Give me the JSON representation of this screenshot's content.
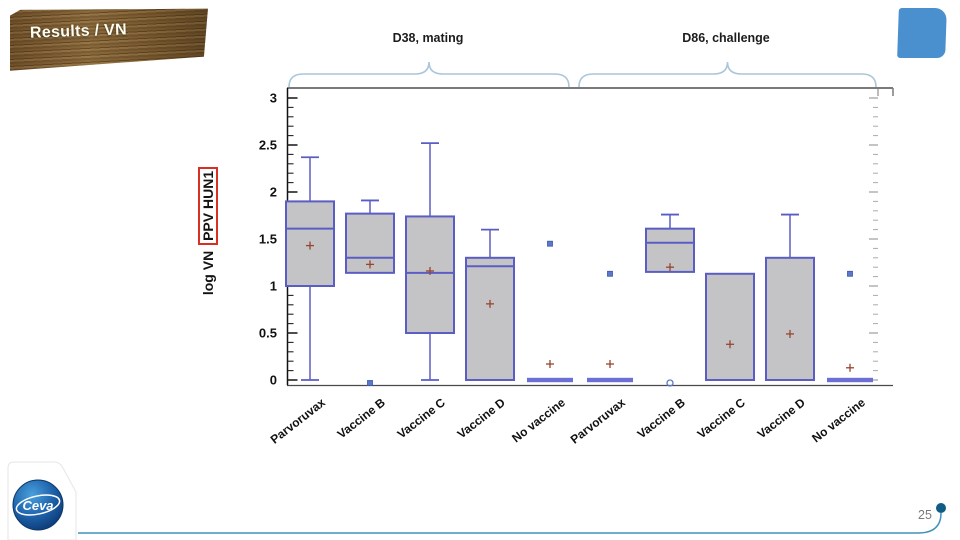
{
  "slide": {
    "title": "Results / VN",
    "page_number": "25"
  },
  "logo": {
    "brand": "Ceva"
  },
  "chart_data": {
    "type": "boxplot",
    "groups": [
      {
        "label": "D38, mating"
      },
      {
        "label": "D86, challenge"
      }
    ],
    "ylabel_prefix": "log VN",
    "ylabel_highlight": "PPV HUN1",
    "ylim": [
      0,
      3
    ],
    "ytick_step": 0.5,
    "yminor_step": 0.1,
    "ytick_labels": [
      "0",
      "0.5",
      "1",
      "1.5",
      "2",
      "2.5",
      "3"
    ],
    "categories": [
      "Parvoruvax",
      "Vaccine B",
      "Vaccine C",
      "Vaccine D",
      "No vaccine",
      "Parvoruvax",
      "Vaccine B",
      "Vaccine C",
      "Vaccine D",
      "No vaccine"
    ],
    "boxes": [
      {
        "category": "Parvoruvax",
        "group": "D38, mating",
        "lo": 0,
        "q1": 1.0,
        "med": 1.61,
        "q3": 1.9,
        "hi": 2.37,
        "mean": 1.43,
        "outliers": []
      },
      {
        "category": "Vaccine B",
        "group": "D38, mating",
        "lo": null,
        "q1": 1.14,
        "med": 1.3,
        "q3": 1.77,
        "hi": 1.91,
        "mean": 1.23,
        "outliers": [
          0
        ],
        "outlier_shape": "square"
      },
      {
        "category": "Vaccine C",
        "group": "D38, mating",
        "lo": 0,
        "q1": 0.5,
        "med": 1.14,
        "q3": 1.74,
        "hi": 2.52,
        "mean": 1.16,
        "outliers": []
      },
      {
        "category": "Vaccine D",
        "group": "D38, mating",
        "lo": null,
        "q1": 0,
        "med": 1.21,
        "q3": 1.3,
        "hi": 1.6,
        "mean": 0.81,
        "outliers": []
      },
      {
        "category": "No vaccine",
        "group": "D38, mating",
        "lo": null,
        "q1": 0,
        "med": 0,
        "q3": 0,
        "hi": null,
        "mean": 0.17,
        "outliers": [
          1.45
        ],
        "outlier_shape": "square"
      },
      {
        "category": "Parvoruvax",
        "group": "D86, challenge",
        "lo": null,
        "q1": 0,
        "med": 0,
        "q3": 0,
        "hi": null,
        "mean": 0.17,
        "outliers": [
          1.13
        ],
        "outlier_shape": "square"
      },
      {
        "category": "Vaccine B",
        "group": "D86, challenge",
        "lo": null,
        "q1": 1.15,
        "med": 1.46,
        "q3": 1.61,
        "hi": 1.76,
        "mean": 1.2,
        "outliers": [
          0
        ],
        "outlier_shape": "circle"
      },
      {
        "category": "Vaccine C",
        "group": "D86, challenge",
        "lo": null,
        "q1": 0,
        "med": 0,
        "q3": 1.13,
        "hi": null,
        "mean": 0.38,
        "outliers": []
      },
      {
        "category": "Vaccine D",
        "group": "D86, challenge",
        "lo": null,
        "q1": 0,
        "med": 0,
        "q3": 1.3,
        "hi": 1.76,
        "mean": 0.49,
        "outliers": []
      },
      {
        "category": "No vaccine",
        "group": "D86, challenge",
        "lo": null,
        "q1": 0,
        "med": 0,
        "q3": 0,
        "hi": null,
        "mean": 0.13,
        "outliers": [
          1.13
        ],
        "outlier_shape": "square"
      }
    ],
    "colors": {
      "box_fill": "#c4c4c6",
      "box_border": "#5a5ec4",
      "flat_line": "#6b6fd6",
      "mean_marker": "#97452e",
      "outlier": "#5b79cc",
      "brace": "#a9c6da",
      "axis": "#111111",
      "frame": "#7a7a7a",
      "tab_blue": "#4a8fce",
      "swoosh_blue": "#4191be",
      "swoosh_dot": "#0f5c84"
    }
  }
}
